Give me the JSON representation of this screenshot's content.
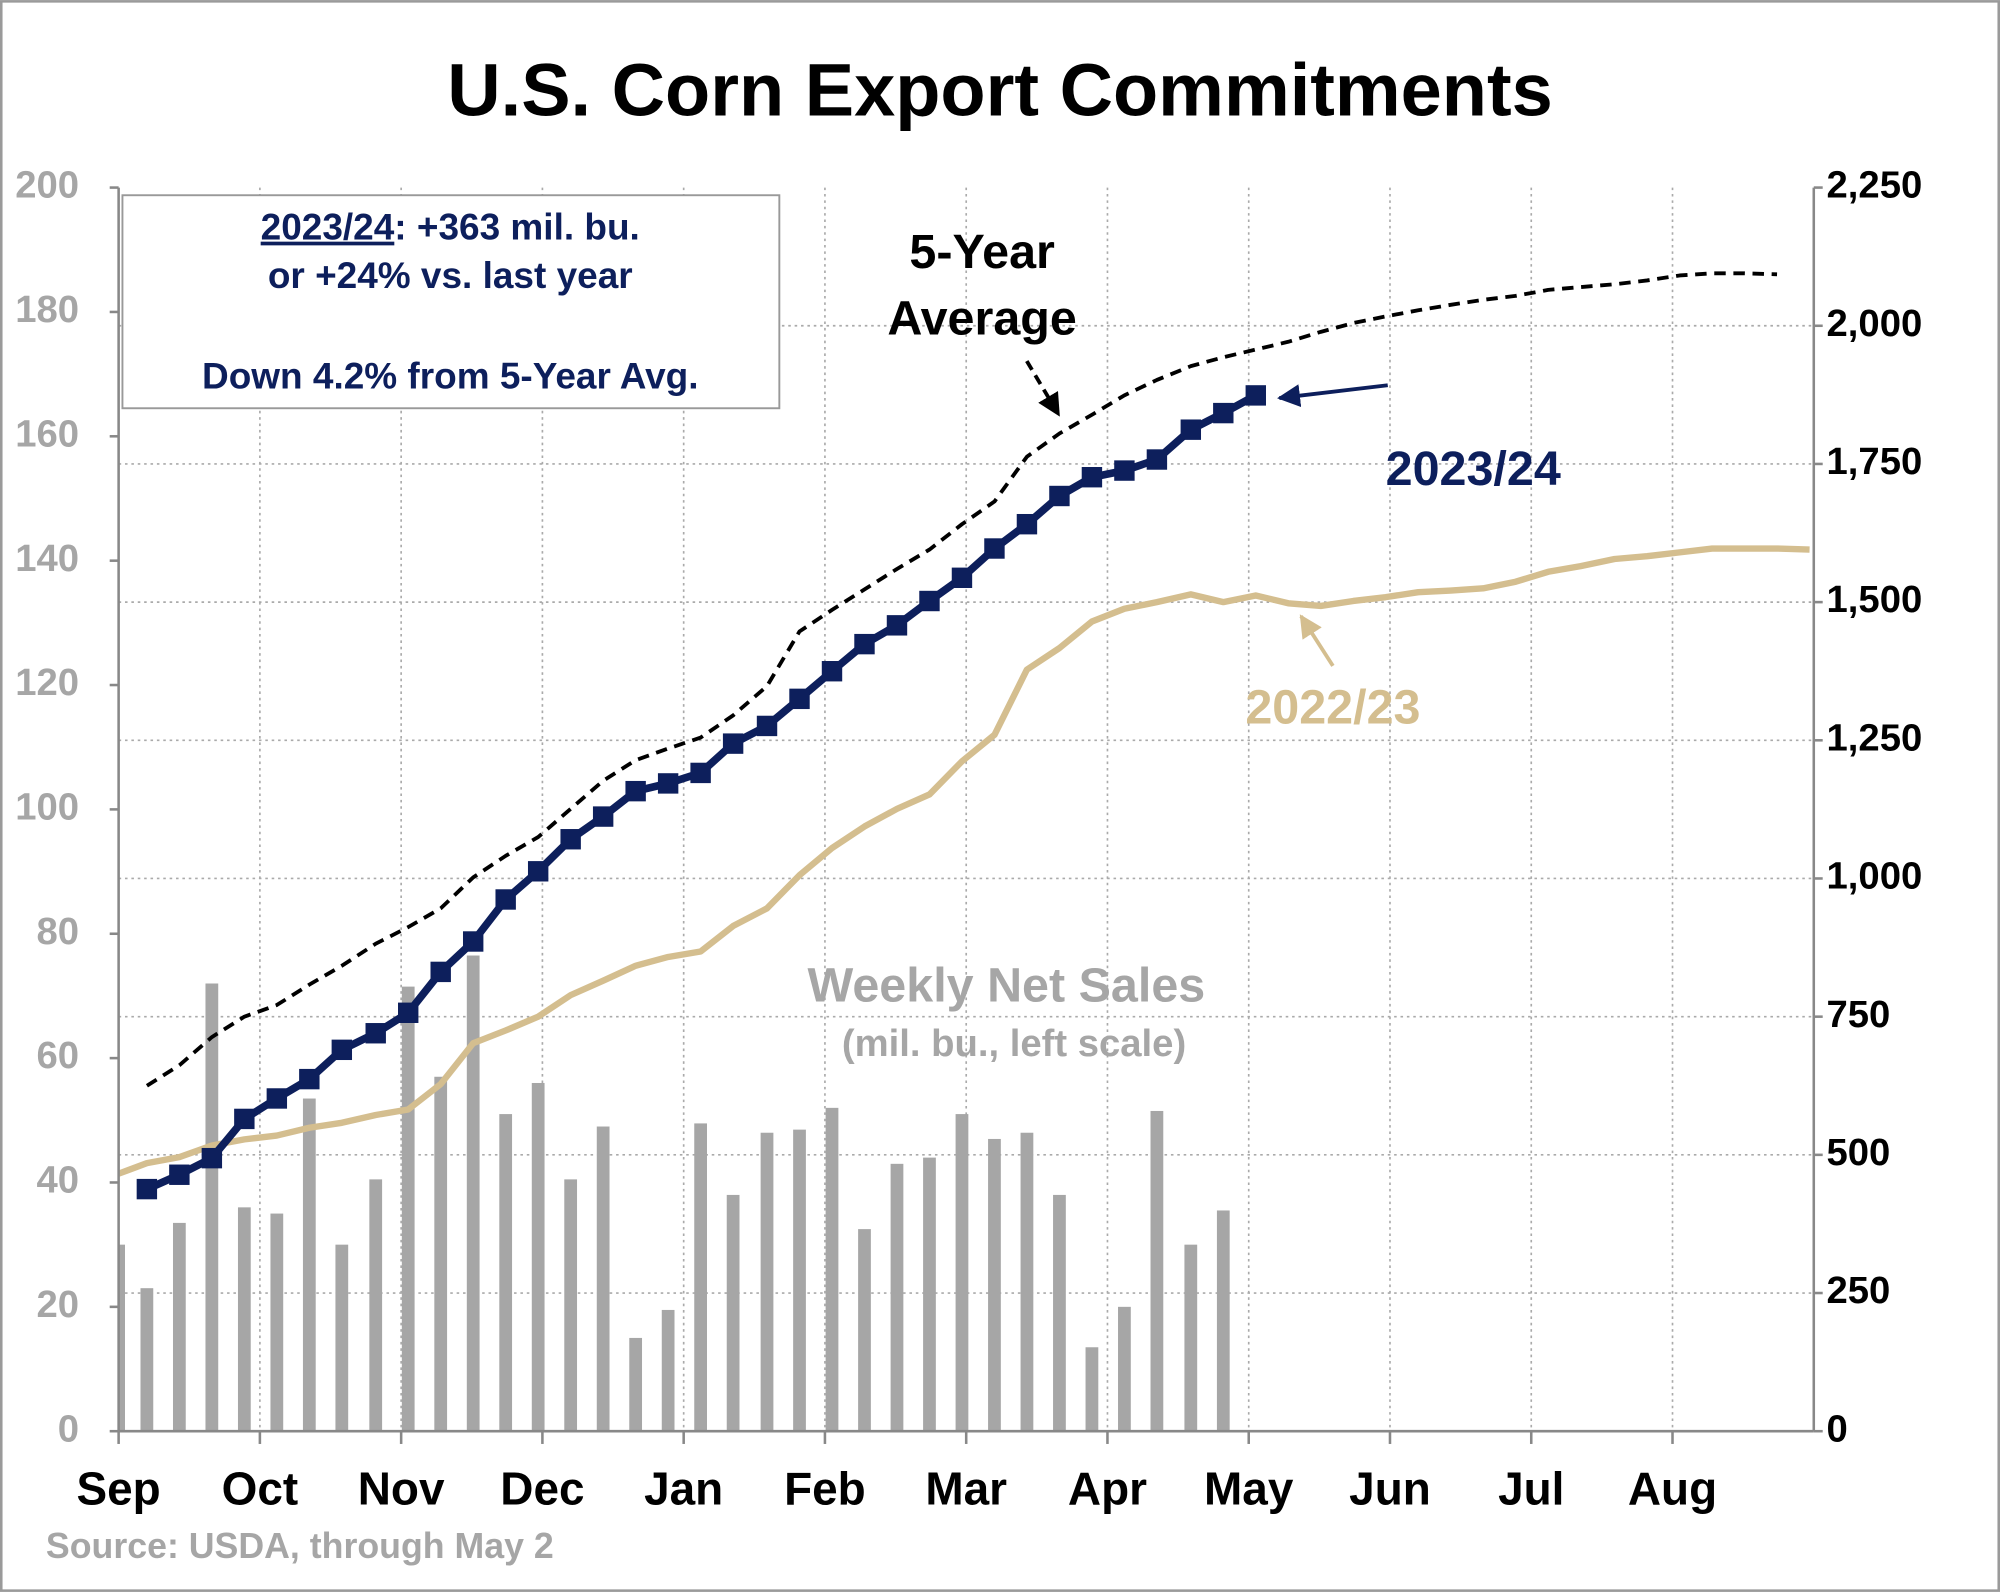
{
  "chart_data": {
    "type": "combo",
    "title": "U.S. Corn Export Commitments",
    "source": "Source: USDA, through May 2",
    "annotations": {
      "box": [
        "2023/24",
        ": +363 mil. bu.",
        "or +24% vs. last year",
        "Down 4.2% from 5-Year Avg."
      ],
      "bar_note": "(mil. bu., left scale)"
    },
    "xlim": [
      0,
      12
    ],
    "xticks": [
      {
        "value": 0,
        "label": "Sep"
      },
      {
        "value": 1,
        "label": "Oct"
      },
      {
        "value": 2,
        "label": "Nov"
      },
      {
        "value": 3,
        "label": "Dec"
      },
      {
        "value": 4,
        "label": "Jan"
      },
      {
        "value": 5,
        "label": "Feb"
      },
      {
        "value": 6,
        "label": "Mar"
      },
      {
        "value": 7,
        "label": "Apr"
      },
      {
        "value": 8,
        "label": "May"
      },
      {
        "value": 9,
        "label": "Jun"
      },
      {
        "value": 10,
        "label": "Jul"
      },
      {
        "value": 11,
        "label": "Aug"
      }
    ],
    "ylim": [
      0,
      200
    ],
    "yticks": [
      0,
      20,
      40,
      60,
      80,
      100,
      120,
      140,
      160,
      180,
      200
    ],
    "y2lim": [
      0,
      2250
    ],
    "y2ticks": [
      0,
      250,
      500,
      750,
      {
        "value": 1000,
        "label": "1,000"
      },
      {
        "value": 1250,
        "label": "1,250"
      },
      {
        "value": 1500,
        "label": "1,500"
      },
      {
        "value": 1750,
        "label": "1,750"
      },
      {
        "value": 2000,
        "label": "2,000"
      },
      {
        "value": 2250,
        "label": "2,250"
      }
    ],
    "grid": true,
    "x": [
      0,
      0.2,
      0.43,
      0.66,
      0.89,
      1.12,
      1.35,
      1.58,
      1.82,
      2.05,
      2.28,
      2.51,
      2.74,
      2.97,
      3.2,
      3.43,
      3.66,
      3.89,
      4.12,
      4.35,
      4.59,
      4.82,
      5.05,
      5.28,
      5.51,
      5.74,
      5.97,
      6.2,
      6.43,
      6.66,
      6.89,
      7.12,
      7.35,
      7.59,
      7.82,
      8.05,
      8.28,
      8.51,
      8.74,
      8.97,
      9.2,
      9.43,
      9.66,
      9.89,
      10.12,
      10.35,
      10.59,
      10.82,
      11.05,
      11.28,
      11.51,
      11.74,
      11.97
    ],
    "series": [
      {
        "name": "Weekly Net Sales",
        "type": "bar",
        "axis": "y",
        "color": "#a6a6a6",
        "values": [
          30,
          23,
          33.5,
          72,
          36,
          35,
          53.5,
          30,
          40.5,
          71.5,
          57,
          76.5,
          51,
          56,
          40.5,
          49,
          15,
          19.5,
          49.5,
          38,
          48,
          48.5,
          52,
          32.5,
          43,
          44,
          51,
          47,
          48,
          38,
          13.5,
          20,
          51.5,
          30,
          35.5,
          null,
          null,
          null,
          null,
          null,
          null,
          null,
          null,
          null,
          null,
          null,
          null,
          null,
          null,
          null,
          null,
          null,
          null
        ]
      },
      {
        "name": "2023/24",
        "type": "line",
        "axis": "y2",
        "color": "#0d1f5c",
        "marker": "square",
        "values": [
          null,
          438,
          464,
          494,
          565,
          602,
          637,
          690,
          720,
          757,
          831,
          886,
          962,
          1013,
          1071,
          1112,
          1158,
          1172,
          1191,
          1244,
          1276,
          1325,
          1375,
          1424,
          1458,
          1502,
          1544,
          1597,
          1641,
          1692,
          1726,
          1738,
          1758,
          1812,
          1842,
          1874,
          null,
          null,
          null,
          null,
          null,
          null,
          null,
          null,
          null,
          null,
          null,
          null,
          null,
          null,
          null,
          null,
          null
        ]
      },
      {
        "name": "2022/23",
        "type": "line",
        "axis": "y2",
        "color": "#d4be8f",
        "values": [
          466,
          485,
          496,
          517,
          528,
          535,
          549,
          558,
          572,
          582,
          628,
          702,
          725,
          750,
          789,
          815,
          842,
          858,
          868,
          914,
          946,
          1006,
          1055,
          1094,
          1126,
          1152,
          1212,
          1260,
          1378,
          1417,
          1465,
          1488,
          1500,
          1514,
          1500,
          1512,
          1498,
          1493,
          1502,
          1509,
          1518,
          1521,
          1525,
          1537,
          1555,
          1565,
          1578,
          1583,
          1590,
          1597,
          1597,
          1597,
          1595
        ]
      },
      {
        "name": "5-Year Average",
        "type": "line",
        "axis": "y2",
        "color": "#000000",
        "dashed": true,
        "values": [
          null,
          625,
          662,
          713,
          750,
          771,
          808,
          842,
          882,
          912,
          946,
          1002,
          1041,
          1075,
          1126,
          1177,
          1214,
          1235,
          1255,
          1295,
          1348,
          1447,
          1486,
          1523,
          1560,
          1595,
          1641,
          1682,
          1763,
          1805,
          1839,
          1874,
          1902,
          1927,
          1943,
          1957,
          1971,
          1989,
          2005,
          2017,
          2028,
          2038,
          2047,
          2054,
          2065,
          2070,
          2075,
          2082,
          2091,
          2095,
          2095,
          2093,
          null
        ]
      }
    ]
  }
}
